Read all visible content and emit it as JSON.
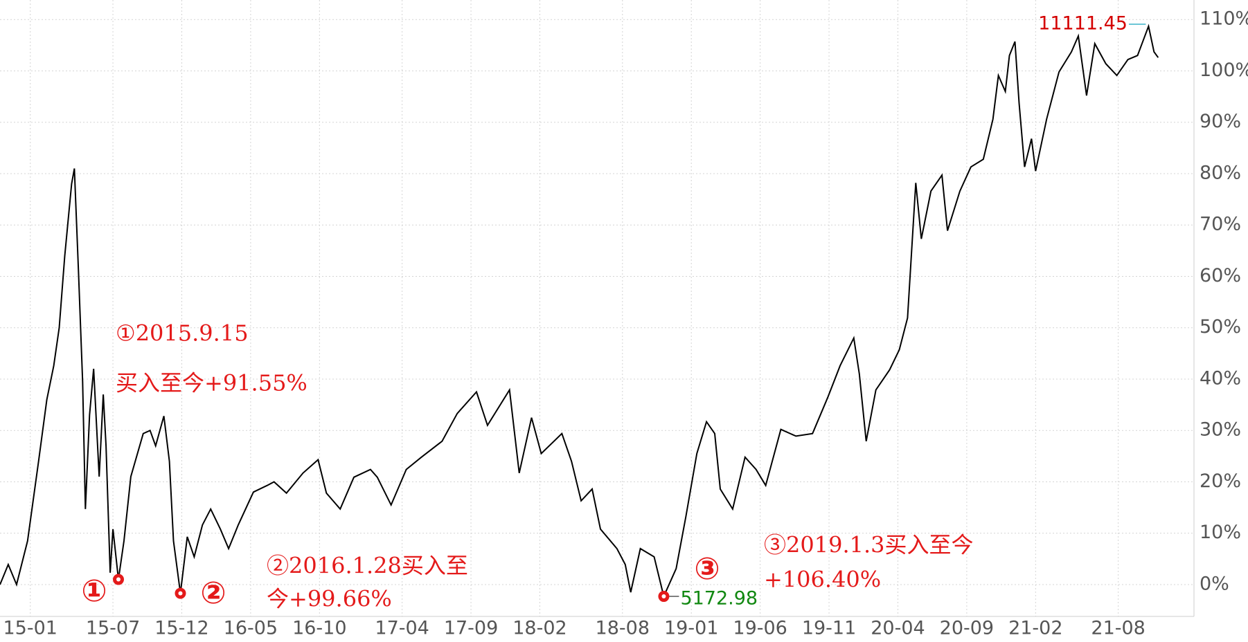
{
  "chart_data": {
    "type": "line",
    "x": [
      -2.2,
      -1.6,
      -1.0,
      -0.2,
      0.6,
      1.2,
      1.7,
      2.1,
      2.5,
      3.0,
      3.2,
      3.5,
      3.8,
      4.0,
      4.3,
      4.6,
      5.0,
      5.3,
      5.5,
      5.8,
      6.0,
      6.4,
      6.8,
      7.3,
      8.2,
      8.7,
      9.1,
      9.7,
      10.1,
      10.4,
      10.9,
      11.4,
      11.9,
      12.5,
      13.1,
      13.8,
      14.4,
      15.1,
      16.2,
      17.2,
      17.7,
      18.6,
      19.8,
      20.9,
      21.5,
      22.5,
      23.5,
      24.7,
      25.2,
      26.2,
      27.3,
      28.4,
      29.9,
      31.0,
      32.4,
      33.2,
      34.8,
      35.5,
      36.4,
      37.1,
      38.6,
      39.3,
      40.0,
      40.8,
      41.4,
      42.6,
      43.2,
      43.6,
      44.3,
      45.3,
      46.0,
      46.9,
      47.6,
      48.4,
      49.1,
      49.7,
      50.1,
      51.0,
      51.9,
      52.7,
      53.4,
      54.5,
      55.6,
      56.8,
      57.9,
      58.8,
      59.8,
      60.2,
      60.7,
      61.4,
      62.4,
      63.1,
      63.7,
      64.3,
      64.7,
      65.4,
      66.2,
      66.6,
      67.5,
      68.3,
      69.2,
      69.9,
      70.3,
      70.8,
      71.1,
      71.5,
      71.8,
      72.2,
      72.7,
      73.0,
      73.8,
      74.7,
      75.6,
      76.1,
      76.7,
      77.3,
      78.1,
      78.9,
      79.7,
      80.4,
      81.2,
      81.6,
      81.9
    ],
    "series": [
      {
        "color": "#000000",
        "values": [
          0,
          3.9,
          0,
          8.5,
          24,
          36,
          42.6,
          50,
          64,
          78,
          81,
          61,
          39.5,
          14.7,
          33,
          42,
          21,
          37,
          27,
          2.3,
          10.8,
          1,
          8.5,
          21,
          29.4,
          30,
          27,
          32.8,
          24,
          8.5,
          -1.7,
          9.3,
          5.4,
          11.6,
          14.7,
          10.8,
          7,
          11.6,
          18,
          19.3,
          20,
          17.8,
          21.7,
          24.3,
          17.8,
          14.7,
          20.9,
          22.4,
          20.9,
          15.5,
          22.4,
          24.8,
          27.9,
          33.3,
          37.5,
          31,
          37.9,
          21.7,
          32.5,
          25.5,
          29.4,
          24,
          16.3,
          18.6,
          10.8,
          7,
          3.9,
          -1.5,
          7,
          5.4,
          -2.3,
          3.1,
          13.2,
          25.5,
          31.7,
          29.4,
          18.6,
          14.7,
          24.8,
          22.4,
          19.3,
          30.2,
          28.9,
          29.4,
          36.4,
          42.6,
          48,
          41,
          27.9,
          37.9,
          41.8,
          45.7,
          51.9,
          78.2,
          67.3,
          76.6,
          79.7,
          68.9,
          76.6,
          81.3,
          82.8,
          90.6,
          99.1,
          96,
          103,
          105.7,
          93.7,
          81.3,
          86.8,
          80.5,
          90.6,
          99.8,
          103.7,
          106.8,
          95.2,
          105.3,
          101.4,
          99.1,
          102.2,
          103,
          108.7,
          103.7,
          102.6
        ]
      }
    ],
    "xlim": [
      -2.2,
      84.5
    ],
    "xticks": [
      {
        "value": 0,
        "label": "15-01"
      },
      {
        "value": 6,
        "label": "15-07"
      },
      {
        "value": 11,
        "label": "15-12"
      },
      {
        "value": 16,
        "label": "16-05"
      },
      {
        "value": 21,
        "label": "16-10"
      },
      {
        "value": 27,
        "label": "17-04"
      },
      {
        "value": 32,
        "label": "17-09"
      },
      {
        "value": 37,
        "label": "18-02"
      },
      {
        "value": 43,
        "label": "18-08"
      },
      {
        "value": 48,
        "label": "19-01"
      },
      {
        "value": 53,
        "label": "19-06"
      },
      {
        "value": 58,
        "label": "19-11"
      },
      {
        "value": 63,
        "label": "20-04"
      },
      {
        "value": 68,
        "label": "20-09"
      },
      {
        "value": 73,
        "label": "21-02"
      },
      {
        "value": 79,
        "label": "21-08"
      }
    ],
    "ylim": [
      -6.2,
      113.8
    ],
    "yticks": [
      {
        "value": 0,
        "label": "0%"
      },
      {
        "value": 10,
        "label": "10%"
      },
      {
        "value": 20,
        "label": "20%"
      },
      {
        "value": 30,
        "label": "30%"
      },
      {
        "value": 40,
        "label": "40%"
      },
      {
        "value": 50,
        "label": "50%"
      },
      {
        "value": 60,
        "label": "60%"
      },
      {
        "value": 70,
        "label": "70%"
      },
      {
        "value": 80,
        "label": "80%"
      },
      {
        "value": 90,
        "label": "90%"
      },
      {
        "value": 100,
        "label": "100%"
      },
      {
        "value": 110,
        "label": "110%"
      }
    ],
    "grid": true,
    "annotations": [
      "①2015.9.15",
      "买入至今+91.55%",
      "①",
      "②",
      "②2016.1.28买入至",
      "今+99.66%",
      "③",
      "③2019.1.3买入至今",
      "+106.40%",
      "11111.45",
      "5172.98"
    ]
  }
}
